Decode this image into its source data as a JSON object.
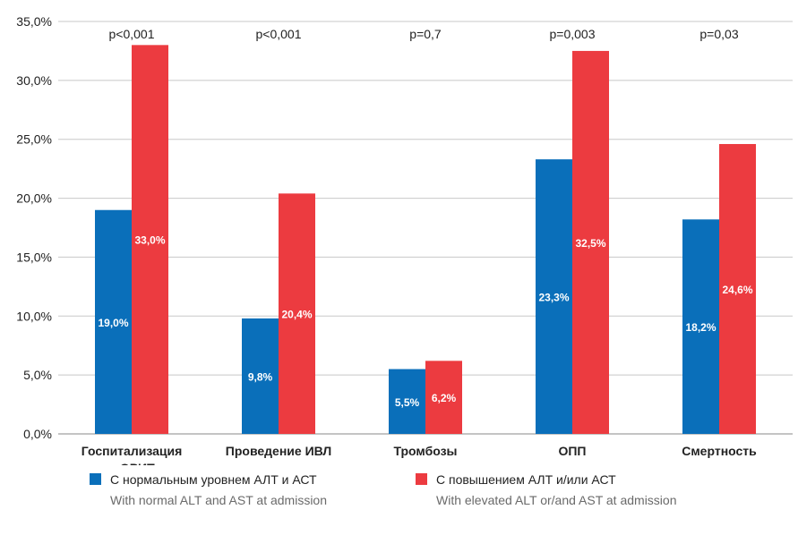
{
  "chart_data": {
    "type": "bar",
    "categories": [
      [
        "Госпитализация",
        "в ОРИТ"
      ],
      [
        "Проведение ИВЛ"
      ],
      [
        "Тромбозы"
      ],
      [
        "ОПП"
      ],
      [
        "Смертность"
      ]
    ],
    "series": [
      {
        "name": "С нормальным уровнем АЛТ и АСТ",
        "name_en": "With normal ALT and AST at admission",
        "color": "#0a6fba",
        "values": [
          19.0,
          9.8,
          5.5,
          23.3,
          18.2
        ],
        "labels": [
          "19,0%",
          "9,8%",
          "5,5%",
          "23,3%",
          "18,2%"
        ]
      },
      {
        "name": "С повышением АЛТ и/или АСТ",
        "name_en": "With elevated ALT or/and AST at admission",
        "color": "#ec3b40",
        "values": [
          33.0,
          20.4,
          6.2,
          32.5,
          24.6
        ],
        "labels": [
          "33,0%",
          "20,4%",
          "6,2%",
          "32,5%",
          "24,6%"
        ]
      }
    ],
    "p_values": [
      "p<0,001",
      "p<0,001",
      "p=0,7",
      "p=0,003",
      "p=0,03"
    ],
    "ylim": [
      0,
      35
    ],
    "yticks": [
      0,
      5,
      10,
      15,
      20,
      25,
      30,
      35
    ],
    "ytick_labels": [
      "0,0%",
      "5,0%",
      "10,0%",
      "15,0%",
      "20,0%",
      "25,0%",
      "30,0%",
      "35,0%"
    ],
    "grid": true,
    "legend_position": "bottom"
  }
}
